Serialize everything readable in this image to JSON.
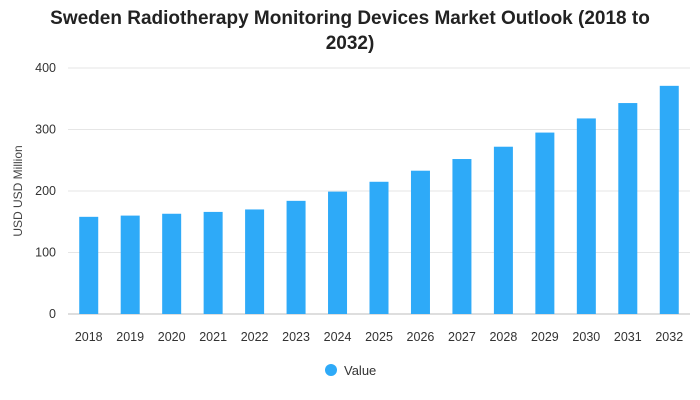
{
  "chart_data": {
    "type": "bar",
    "title_line1": "Sweden Radiotherapy Monitoring Devices Market Outlook (2018 to",
    "title_line2": "2032)",
    "xlabel": "",
    "ylabel": "USD USD Million",
    "ylim": [
      0,
      400
    ],
    "yticks": [
      0,
      100,
      200,
      300,
      400
    ],
    "grid": true,
    "legend_position": "bottom-center",
    "categories": [
      "2018",
      "2019",
      "2020",
      "2021",
      "2022",
      "2023",
      "2024",
      "2025",
      "2026",
      "2027",
      "2028",
      "2029",
      "2030",
      "2031",
      "2032"
    ],
    "series": [
      {
        "name": "Value",
        "color": "#2eaaf8",
        "values": [
          158,
          160,
          163,
          166,
          170,
          184,
          199,
          215,
          233,
          252,
          272,
          295,
          318,
          343,
          371
        ]
      }
    ]
  }
}
